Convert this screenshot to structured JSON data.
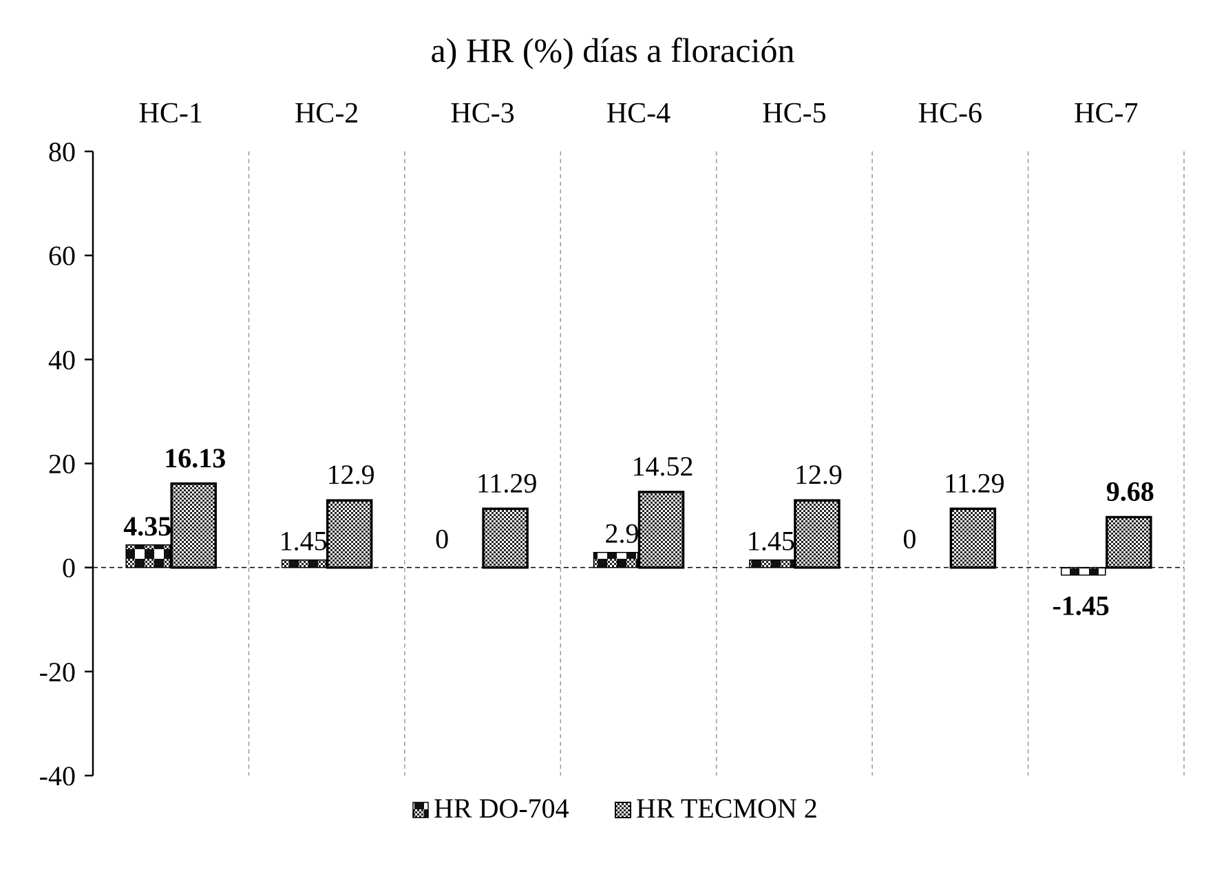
{
  "chart_data": {
    "type": "bar",
    "title": "a) HR (%) días a floración",
    "xlabel": "",
    "ylabel": "",
    "categories": [
      "HC-1",
      "HC-2",
      "HC-3",
      "HC-4",
      "HC-5",
      "HC-6",
      "HC-7"
    ],
    "ylim": [
      -40,
      80
    ],
    "yticks": [
      80,
      60,
      40,
      20,
      0,
      -20,
      -40
    ],
    "ytick_labels": [
      "80",
      "60",
      "40",
      "20",
      "0",
      "-20",
      "-40"
    ],
    "grid": "vertical dashed separators between categories",
    "legend_position": "bottom",
    "series": [
      {
        "name": "HR DO-704",
        "pattern": "checker-light",
        "values": [
          4.35,
          1.45,
          0,
          2.9,
          1.45,
          0,
          -1.45
        ],
        "labels": [
          "4.35",
          "1.45",
          "0",
          "2.9",
          "1.45",
          "0",
          "-1.45"
        ],
        "bold_labels": [
          true,
          false,
          false,
          false,
          false,
          false,
          true
        ]
      },
      {
        "name": "HR TECMON 2",
        "pattern": "checker-dense",
        "values": [
          16.13,
          12.9,
          11.29,
          14.52,
          12.9,
          11.29,
          9.68
        ],
        "labels": [
          "16.13",
          "12.9",
          "11.29",
          "14.52",
          "12.9",
          "11.29",
          "9.68"
        ],
        "bold_labels": [
          true,
          false,
          false,
          false,
          false,
          false,
          true
        ]
      }
    ]
  }
}
